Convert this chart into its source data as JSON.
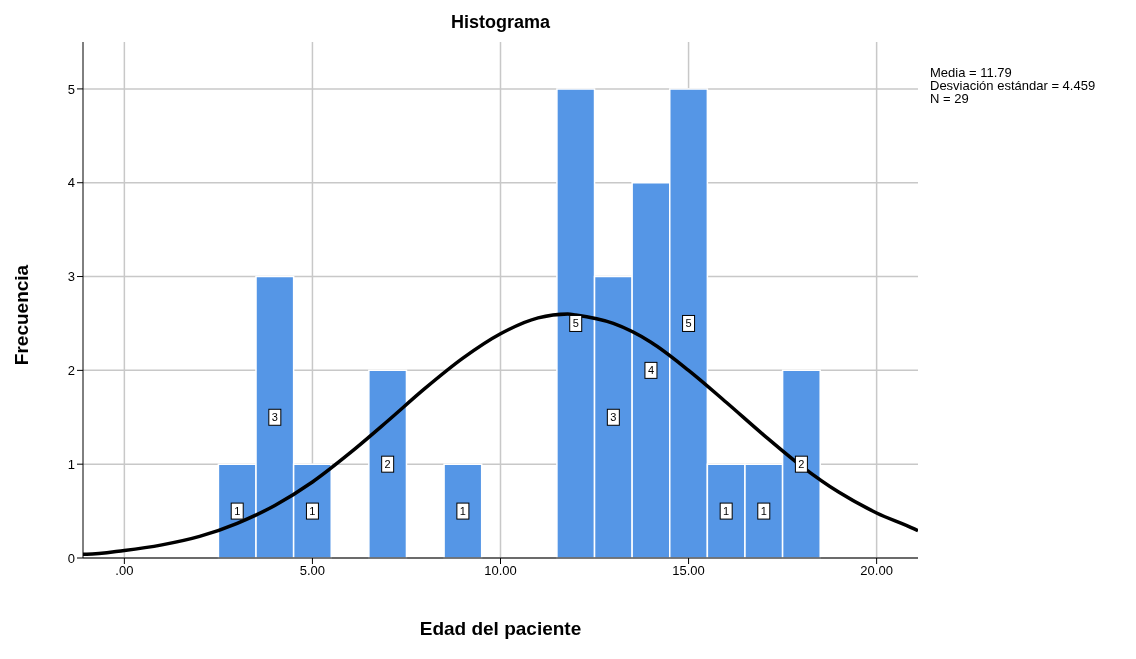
{
  "chart_data": {
    "type": "histogram",
    "title": "Histograma",
    "xlabel": "Edad del paciente",
    "ylabel": "Frecuencia",
    "bins": [
      2.5,
      3.5,
      4.5,
      5.5,
      6.5,
      7.5,
      8.5,
      9.5,
      10.5,
      11.5,
      12.5,
      13.5,
      14.5,
      15.5,
      16.5,
      17.5,
      18.5
    ],
    "values": [
      1,
      3,
      1,
      0,
      2,
      0,
      1,
      0,
      0,
      5,
      3,
      4,
      5,
      1,
      1,
      2
    ],
    "color": "#5596e6",
    "value_labels": [
      "1",
      "3",
      "1",
      null,
      "2",
      null,
      "1",
      null,
      null,
      "5",
      "3",
      "4",
      "5",
      "1",
      "1",
      "2"
    ],
    "series": [
      {
        "type": "line",
        "color": "#000000",
        "x": [
          -1.1,
          -1,
          0,
          1,
          2,
          3,
          4,
          5,
          6,
          7,
          8,
          9,
          10,
          11,
          11.79,
          12,
          13,
          14,
          15,
          16,
          17,
          18,
          19,
          20,
          21,
          21.1
        ],
        "values": [
          0.04,
          0.04,
          0.08,
          0.14,
          0.23,
          0.37,
          0.56,
          0.81,
          1.12,
          1.46,
          1.81,
          2.13,
          2.39,
          2.56,
          2.6,
          2.59,
          2.5,
          2.3,
          2,
          1.66,
          1.31,
          0.98,
          0.7,
          0.48,
          0.31,
          0.29
        ]
      }
    ],
    "xlim": [
      -1.1,
      21.1
    ],
    "xticks": [
      {
        "value": 0,
        "label": ".00"
      },
      {
        "value": 5,
        "label": "5.00"
      },
      {
        "value": 10,
        "label": "10.00"
      },
      {
        "value": 15,
        "label": "15.00"
      },
      {
        "value": 20,
        "label": "20.00"
      }
    ],
    "ylim": [
      0,
      5.5
    ],
    "yticks": [
      0,
      1,
      2,
      3,
      4,
      5
    ],
    "grid": true,
    "annotations": [
      "Media = 11.79",
      "Desviación estándar = 4.459",
      "N = 29"
    ]
  }
}
